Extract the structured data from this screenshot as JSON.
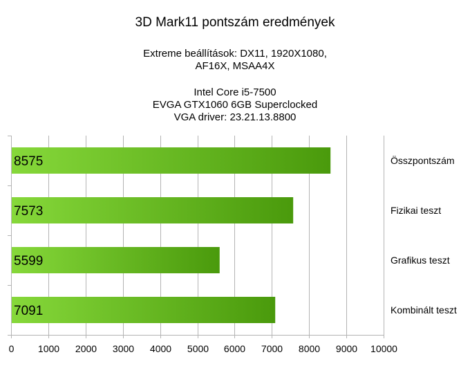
{
  "title": "3D Mark11 pontszám eredmények",
  "subtitle_lines": [
    "Extreme beállítások: DX11, 1920X1080,",
    "AF16X, MSAA4X",
    "Intel Core i5-7500",
    "EVGA GTX1060 6GB Superclocked",
    "VGA driver: 23.21.13.8800"
  ],
  "colors": {
    "bar_light": "#86d83a",
    "bar_dark": "#4a9a0c",
    "grid": "#b3b3b3",
    "axis": "#b3b3b3"
  },
  "chart_data": {
    "type": "bar",
    "orientation": "horizontal",
    "title": "3D Mark11 pontszám eredmények",
    "categories": [
      "Összpontszám",
      "Fizikai teszt",
      "Grafikus teszt",
      "Kombinált teszt"
    ],
    "values": [
      8575,
      7573,
      5599,
      7091
    ],
    "xlim": [
      0,
      10000
    ],
    "xticks": [
      0,
      1000,
      2000,
      3000,
      4000,
      5000,
      6000,
      7000,
      8000,
      9000,
      10000
    ],
    "grid": true,
    "data_labels": "inside-left",
    "category_labels": "right"
  }
}
